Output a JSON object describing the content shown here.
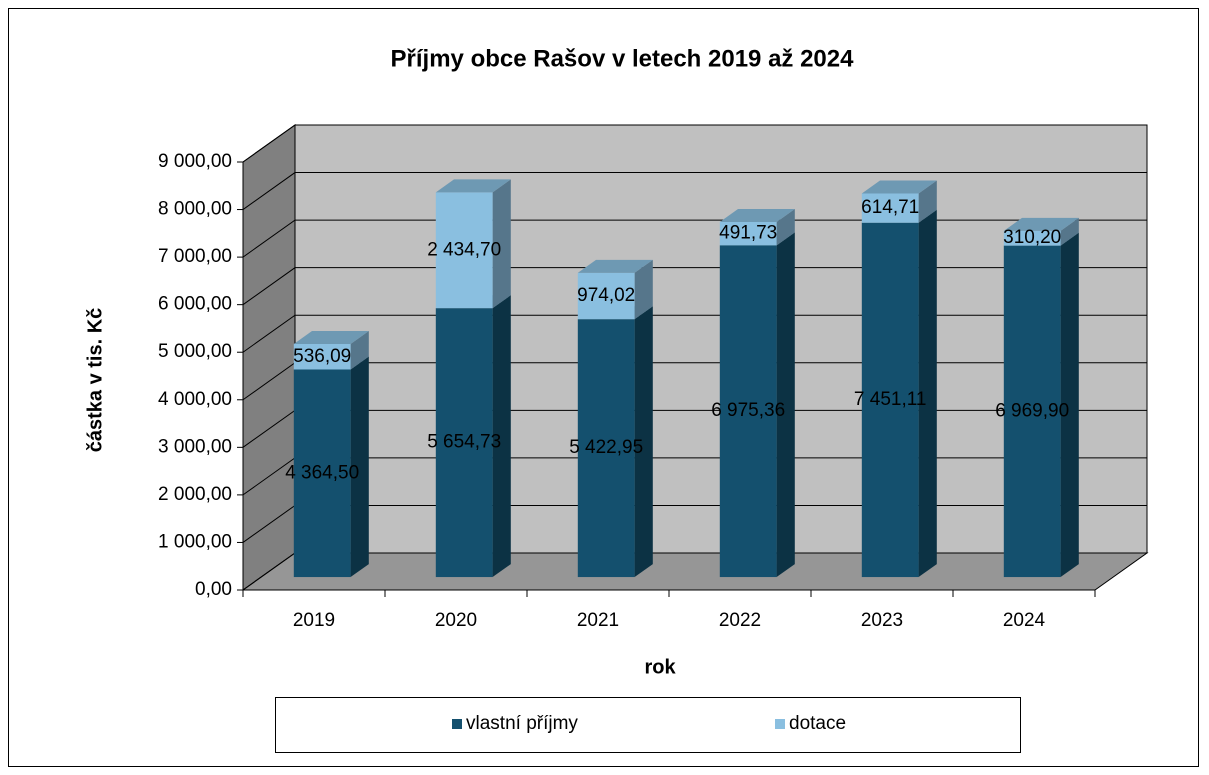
{
  "chart_data": {
    "type": "bar",
    "stacked": true,
    "three_d": true,
    "title": "Příjmy obce Rašov v letech 2019 až 2024",
    "x_label": "rok",
    "y_label": "částka v tis. Kč",
    "categories": [
      "2019",
      "2020",
      "2021",
      "2022",
      "2023",
      "2024"
    ],
    "series": [
      {
        "name": "vlastní příjmy",
        "color": "#14506e",
        "values": [
          4364.5,
          5654.73,
          5422.95,
          6975.36,
          7451.11,
          6969.9
        ],
        "value_labels": [
          "4 364,50",
          "5 654,73",
          "5 422,95",
          "6 975,36",
          "7 451,11",
          "6 969,90"
        ]
      },
      {
        "name": "dotace",
        "color": "#8abfe0",
        "values": [
          536.09,
          2434.7,
          974.02,
          491.73,
          614.71,
          310.2
        ],
        "value_labels": [
          "536,09",
          "2 434,70",
          "974,02",
          "491,73",
          "614,71",
          "310,20"
        ]
      }
    ],
    "ylim": [
      0,
      9000
    ],
    "yticks": [
      {
        "value": 0,
        "label": "0,00"
      },
      {
        "value": 1000,
        "label": "1 000,00"
      },
      {
        "value": 2000,
        "label": "2 000,00"
      },
      {
        "value": 3000,
        "label": "3 000,00"
      },
      {
        "value": 4000,
        "label": "4 000,00"
      },
      {
        "value": 5000,
        "label": "5 000,00"
      },
      {
        "value": 6000,
        "label": "6 000,00"
      },
      {
        "value": 7000,
        "label": "7 000,00"
      },
      {
        "value": 8000,
        "label": "8 000,00"
      },
      {
        "value": 9000,
        "label": "9 000,00"
      }
    ],
    "grid": true,
    "legend": "bottom"
  }
}
